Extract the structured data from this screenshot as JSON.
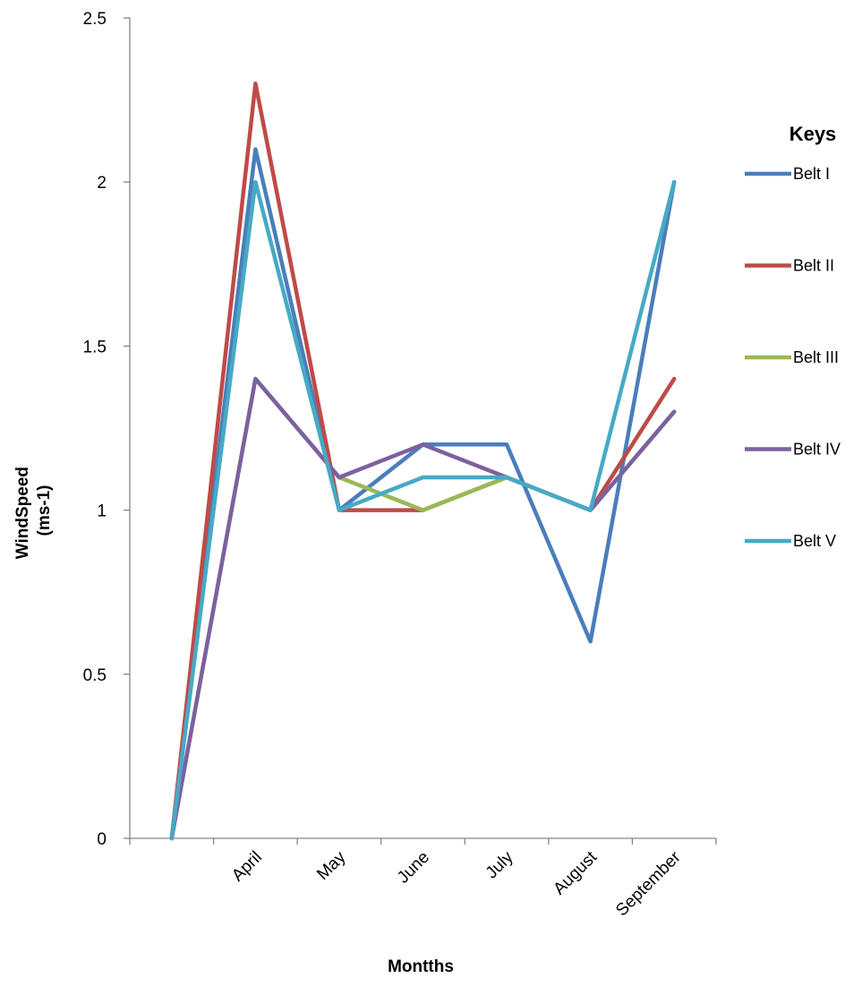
{
  "chart_data": {
    "type": "line",
    "title": "",
    "xlabel": "Montths",
    "ylabel_lines": [
      "WindSpeed",
      "(ms-1)"
    ],
    "categories": [
      "",
      "April",
      "May",
      "June",
      "July",
      "August",
      "September"
    ],
    "yticks": [
      "0",
      "0.5",
      "1",
      "1.5",
      "2",
      "2.5"
    ],
    "ylim": [
      0,
      2.5
    ],
    "legend_title": "Keys",
    "legend_position": "right",
    "grid": false,
    "series": [
      {
        "name": "Belt I",
        "color": "#4a7ebb",
        "values": [
          0,
          2.1,
          1.0,
          1.2,
          1.2,
          0.6,
          2.0
        ]
      },
      {
        "name": "Belt II",
        "color": "#be4b48",
        "values": [
          0,
          2.3,
          1.0,
          1.0,
          1.1,
          1.0,
          1.4
        ]
      },
      {
        "name": "Belt III",
        "color": "#98b954",
        "values": [
          0,
          1.4,
          1.1,
          1.0,
          1.1,
          1.0,
          1.3
        ]
      },
      {
        "name": "Belt IV",
        "color": "#7d60a0",
        "values": [
          0,
          1.4,
          1.1,
          1.2,
          1.1,
          1.0,
          1.3
        ]
      },
      {
        "name": "Belt V",
        "color": "#46aac5",
        "values": [
          0,
          2.0,
          1.0,
          1.1,
          1.1,
          1.0,
          2.0
        ]
      }
    ]
  }
}
